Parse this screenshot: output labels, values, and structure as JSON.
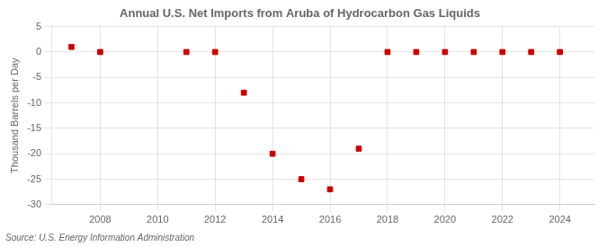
{
  "chart_data": {
    "type": "scatter",
    "title": "Annual U.S. Net Imports from Aruba of Hydrocarbon Gas Liquids",
    "ylabel": "Thousand Barrels per Day",
    "annotation": "Source: U.S. Energy Information Administration",
    "x": [
      2007,
      2008,
      2011,
      2012,
      2013,
      2014,
      2015,
      2016,
      2017,
      2018,
      2019,
      2020,
      2021,
      2022,
      2023,
      2024
    ],
    "values": [
      1.0,
      0.0,
      0.0,
      0.0,
      -8.0,
      -20.0,
      -25.0,
      -27.0,
      -19.0,
      0.0,
      0.0,
      0.0,
      0.0,
      0.0,
      0.0,
      0.0
    ],
    "color": "#cc0000",
    "marker": "square",
    "xlim": [
      2006.3,
      2025.2
    ],
    "xticks": [
      2008,
      2010,
      2012,
      2014,
      2016,
      2018,
      2020,
      2022,
      2024
    ],
    "ylim": [
      -30,
      5
    ],
    "yticks": [
      5,
      0,
      -5,
      -10,
      -15,
      -20,
      -25,
      -30
    ],
    "grid": true,
    "legend": false
  }
}
